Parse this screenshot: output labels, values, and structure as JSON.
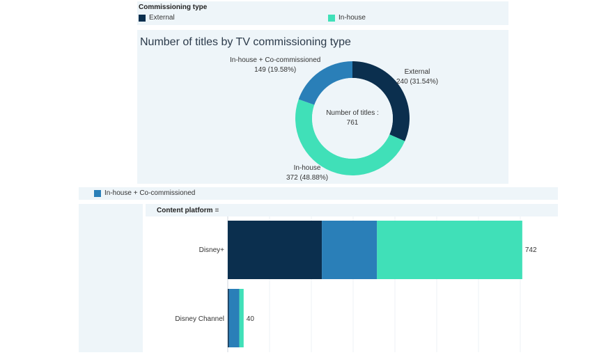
{
  "legend_top": {
    "title": "Commissioning type",
    "items": [
      {
        "label": "External",
        "color": "#0b2f4e"
      },
      {
        "label": "In-house",
        "color": "#40e0b8"
      }
    ]
  },
  "donut": {
    "title": "Number of titles by TV commissioning type",
    "center_label": "Number of titles :",
    "center_value": "761"
  },
  "legend_bottom": {
    "items": [
      {
        "label": "In-house + Co-commissioned",
        "color": "#2a7fb8"
      }
    ]
  },
  "bar": {
    "header": "Content platform",
    "sort_icon": "sort-descending-icon"
  },
  "chart_data": [
    {
      "type": "pie",
      "title": "Number of titles by TV commissioning type",
      "categories": [
        "External",
        "In-house",
        "In-house + Co-commissioned"
      ],
      "values": [
        240,
        372,
        149
      ],
      "labels": [
        "240 (31.54%)",
        "372 (48.88%)",
        "149 (19.58%)"
      ],
      "colors": [
        "#0b2f4e",
        "#40e0b8",
        "#2a7fb8"
      ],
      "total": 761
    },
    {
      "type": "bar",
      "orientation": "horizontal",
      "stacked": true,
      "xlabel": "",
      "ylabel": "Content platform",
      "categories": [
        "Disney+",
        "Disney Channel"
      ],
      "series": [
        {
          "name": "External",
          "values": [
            237,
            3
          ],
          "color": "#0b2f4e"
        },
        {
          "name": "In-house + Co-commissioned",
          "values": [
            139,
            26
          ],
          "color": "#2a7fb8"
        },
        {
          "name": "In-house",
          "values": [
            366,
            11
          ],
          "color": "#40e0b8"
        }
      ],
      "totals": [
        742,
        40
      ],
      "xlim": [
        0,
        830
      ]
    }
  ]
}
